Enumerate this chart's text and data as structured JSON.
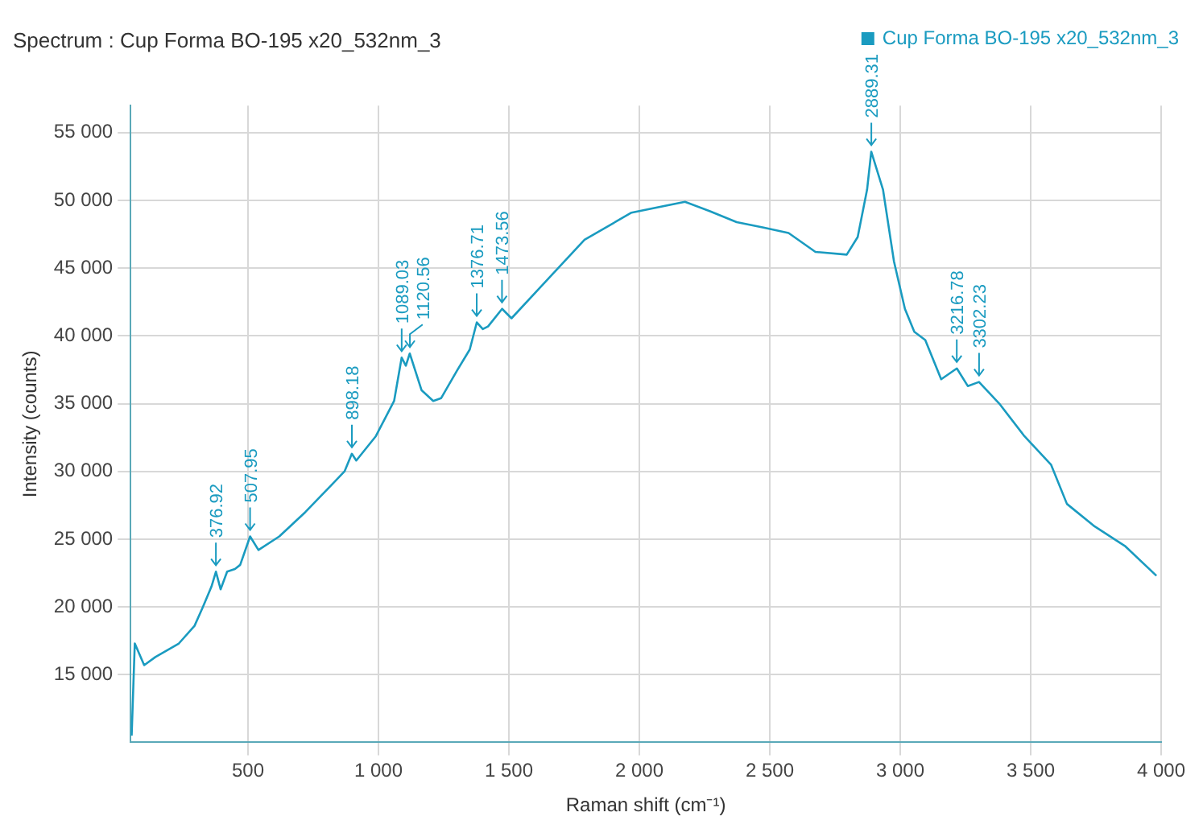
{
  "chart_data": {
    "type": "line",
    "title": "Spectrum : Cup Forma BO-195 x20_532nm_3",
    "xlabel": "Raman shift (cm⁻¹)",
    "ylabel": "Intensity (counts)",
    "xlim": [
      50,
      4000
    ],
    "xticks": [
      500,
      {
        "value": 1000,
        "label": "1 000"
      },
      {
        "value": 1500,
        "label": "1 500"
      },
      {
        "value": 2000,
        "label": "2 000"
      },
      {
        "value": 2500,
        "label": "2 500"
      },
      {
        "value": 3000,
        "label": "3 000"
      },
      {
        "value": 3500,
        "label": "3 500"
      },
      {
        "value": 4000,
        "label": "4 000"
      }
    ],
    "ylim": [
      10000,
      57000
    ],
    "yticks": [
      {
        "value": 15000,
        "label": "15 000"
      },
      {
        "value": 20000,
        "label": "20 000"
      },
      {
        "value": 25000,
        "label": "25 000"
      },
      {
        "value": 30000,
        "label": "30 000"
      },
      {
        "value": 35000,
        "label": "35 000"
      },
      {
        "value": 40000,
        "label": "40 000"
      },
      {
        "value": 45000,
        "label": "45 000"
      },
      {
        "value": 50000,
        "label": "50 000"
      },
      {
        "value": 55000,
        "label": "55 000"
      }
    ],
    "grid": true,
    "legend": "top right",
    "marker": "none",
    "line_style": "solid",
    "series": [
      {
        "name": "Cup Forma BO-195 x20_532nm_3",
        "color": "#1a9bc0",
        "x": [
          54,
          66,
          102,
          145,
          235,
          295,
          325,
          360,
          377,
          395,
          420,
          450,
          470,
          508,
          540,
          620,
          720,
          820,
          870,
          898,
          915,
          990,
          1060,
          1089,
          1105,
          1120,
          1165,
          1210,
          1240,
          1300,
          1350,
          1377,
          1400,
          1420,
          1474,
          1510,
          1640,
          1790,
          1970,
          2175,
          2271,
          2373,
          2476,
          2572,
          2675,
          2795,
          2837,
          2873,
          2889,
          2934,
          2976,
          3018,
          3054,
          3096,
          3157,
          3217,
          3259,
          3302,
          3380,
          3476,
          3578,
          3639,
          3741,
          3861,
          3982
        ],
        "values": [
          10500,
          17300,
          15700,
          16300,
          17300,
          18600,
          19900,
          21500,
          22600,
          21300,
          22600,
          22800,
          23100,
          25200,
          24200,
          25200,
          27000,
          29000,
          30000,
          31300,
          30800,
          32600,
          35200,
          38400,
          37800,
          38700,
          36000,
          35200,
          35400,
          37400,
          39000,
          41000,
          40500,
          40700,
          42000,
          41300,
          44000,
          47100,
          49100,
          49900,
          49200,
          48400,
          48000,
          47600,
          46200,
          46000,
          47300,
          50800,
          53600,
          50800,
          45500,
          42000,
          40300,
          39700,
          36800,
          37600,
          36300,
          36600,
          35000,
          32600,
          30500,
          27600,
          26000,
          24500,
          22300
        ]
      }
    ],
    "annotations": [
      {
        "text": "376.92",
        "x": 376.92,
        "y": 22600
      },
      {
        "text": "507.95",
        "x": 507.95,
        "y": 25200
      },
      {
        "text": "898.18",
        "x": 898.18,
        "y": 31300
      },
      {
        "text": "1089.03",
        "x": 1089.03,
        "y": 38400
      },
      {
        "text": "1120.56",
        "x": 1120.56,
        "y": 38700
      },
      {
        "text": "1376.71",
        "x": 1376.71,
        "y": 41000
      },
      {
        "text": "1473.56",
        "x": 1473.56,
        "y": 42000
      },
      {
        "text": "2889.31",
        "x": 2889.31,
        "y": 53600
      },
      {
        "text": "3216.78",
        "x": 3216.78,
        "y": 37600
      },
      {
        "text": "3302.23",
        "x": 3302.23,
        "y": 36600
      }
    ]
  }
}
